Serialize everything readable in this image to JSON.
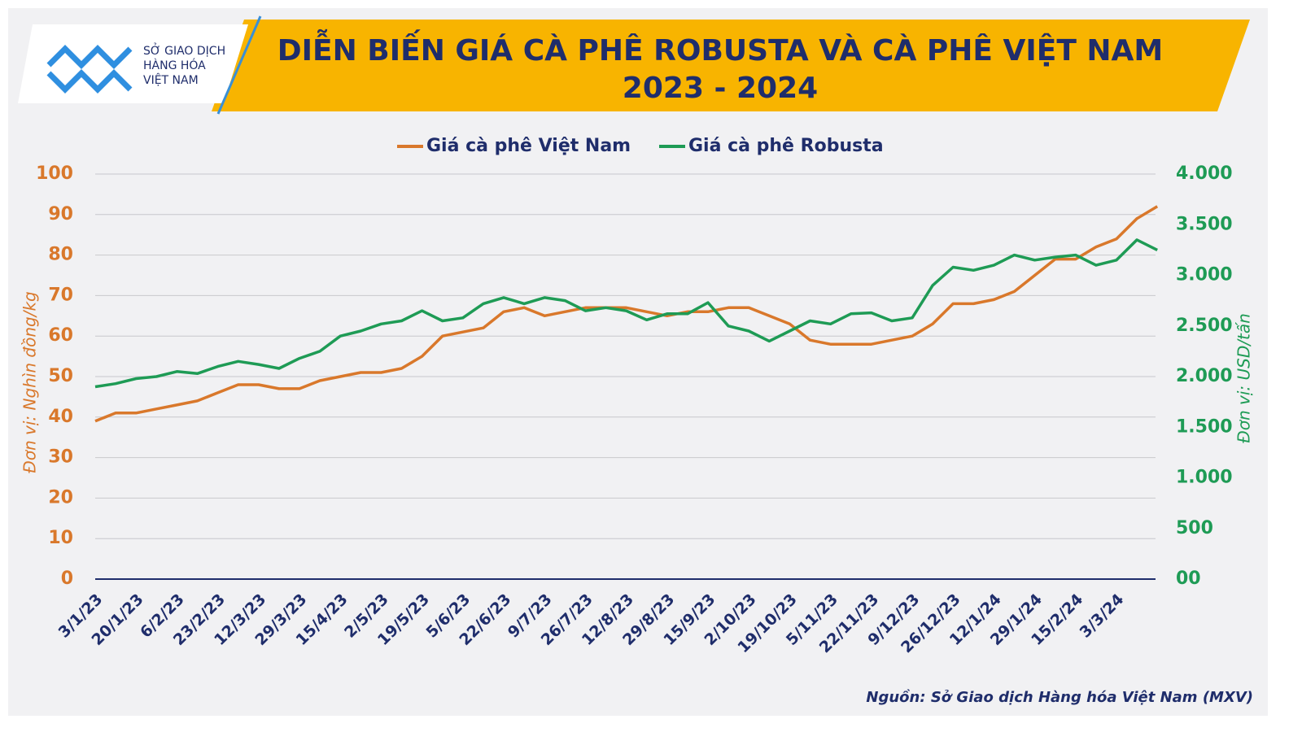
{
  "logo": {
    "lines": [
      "SỞ GIAO DỊCH",
      "HÀNG HÓA",
      "VIỆT NAM"
    ]
  },
  "chart_data": {
    "type": "line",
    "title": [
      "DIỄN BIẾN GIÁ CÀ PHÊ ROBUSTA VÀ CÀ PHÊ VIỆT NAM",
      "2023 - 2024"
    ],
    "y_label": "Đơn vị: Nghìn đồng/kg",
    "y2_label": "Đơn vị: USD/tấn",
    "source": "Nguồn: Sở Giao dịch Hàng hóa Việt Nam (MXV)",
    "categories": [
      "3/1/23",
      null,
      "20/1/23",
      null,
      "6/2/23",
      null,
      "23/2/23",
      null,
      "12/3/23",
      null,
      "29/3/23",
      null,
      "15/4/23",
      null,
      "2/5/23",
      null,
      "19/5/23",
      null,
      "5/6/23",
      null,
      "22/6/23",
      null,
      "9/7/23",
      null,
      "26/7/23",
      null,
      "12/8/23",
      null,
      "29/8/23",
      null,
      "15/9/23",
      null,
      "2/10/23",
      null,
      "19/10/23",
      null,
      "5/11/23",
      null,
      "22/11/23",
      null,
      "9/12/23",
      null,
      "26/12/23",
      null,
      "12/1/24",
      null,
      "29/1/24",
      null,
      "15/2/24",
      null,
      "3/3/24",
      null,
      null
    ],
    "series": [
      {
        "name": "Giá cà phê Việt Nam",
        "color": "#d9782b",
        "axis": "y",
        "values": [
          39,
          41,
          41,
          42,
          43,
          44,
          46,
          48,
          48,
          47,
          47,
          49,
          50,
          51,
          51,
          52,
          55,
          60,
          61,
          62,
          66,
          67,
          65,
          66,
          67,
          67,
          67,
          66,
          65,
          66,
          66,
          67,
          67,
          65,
          63,
          59,
          58,
          58,
          58,
          59,
          60,
          63,
          68,
          68,
          69,
          71,
          75,
          79,
          79,
          82,
          84,
          89,
          92
        ]
      },
      {
        "name": "Giá cà phê Robusta",
        "color": "#1e9b55",
        "axis": "y2",
        "values": [
          1900,
          1930,
          1980,
          2000,
          2050,
          2030,
          2100,
          2150,
          2120,
          2080,
          2180,
          2250,
          2400,
          2450,
          2520,
          2550,
          2650,
          2550,
          2580,
          2720,
          2780,
          2720,
          2780,
          2750,
          2650,
          2680,
          2650,
          2560,
          2620,
          2620,
          2730,
          2500,
          2450,
          2350,
          2450,
          2550,
          2520,
          2620,
          2630,
          2550,
          2580,
          2900,
          3080,
          3050,
          3100,
          3200,
          3150,
          3180,
          3200,
          3100,
          3150,
          3350,
          3250
        ]
      }
    ],
    "ylim": [
      0,
      100
    ],
    "yticks": [
      0,
      10,
      20,
      30,
      40,
      50,
      60,
      70,
      80,
      90,
      100
    ],
    "y2lim": [
      0,
      4000
    ],
    "y2ticks": [
      {
        "value": 0,
        "label": "00"
      },
      500,
      {
        "value": 1000,
        "label": "1.000"
      },
      {
        "value": 1500,
        "label": "1.500"
      },
      {
        "value": 2000,
        "label": "2.000"
      },
      {
        "value": 2500,
        "label": "2.500"
      },
      {
        "value": 3000,
        "label": "3.000"
      },
      {
        "value": 3500,
        "label": "3.500"
      },
      {
        "value": 4000,
        "label": "4.000"
      }
    ],
    "grid": true,
    "legend": "top"
  }
}
